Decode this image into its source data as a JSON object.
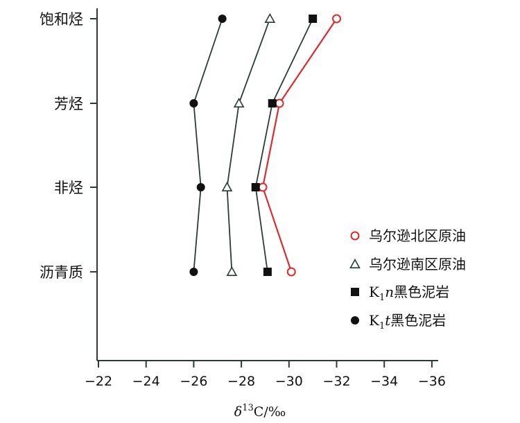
{
  "chart_data": {
    "type": "line",
    "orientation": "vertical-categories",
    "categories": [
      "饱和烃",
      "芳烃",
      "非烃",
      "沥青质"
    ],
    "x_axis": {
      "label": "δ13C/‰",
      "label_parts": {
        "delta": "δ",
        "sup": "13",
        "rest": "C/‰"
      },
      "ticks": [
        -22,
        -24,
        -26,
        -28,
        -30,
        -32,
        -34,
        -36
      ],
      "tick_labels": [
        "−22",
        "−24",
        "−26",
        "−28",
        "−30",
        "−32",
        "−34",
        "−36"
      ],
      "range": [
        -22,
        -36
      ],
      "reversed": true
    },
    "grid": false,
    "legend_position": "right",
    "series": [
      {
        "name": "乌尔逊北区原油",
        "legend": [
          {
            "t": "乌尔逊北区原油"
          }
        ],
        "marker": "open-circle",
        "color": "#e0282d",
        "line_color": "#e0282d",
        "values": [
          -32.0,
          -29.6,
          -28.9,
          -30.1
        ]
      },
      {
        "name": "乌尔逊南区原油",
        "legend": [
          {
            "t": "乌尔逊南区原油"
          }
        ],
        "marker": "open-triangle",
        "color": "#2b3a33",
        "line_color": "#2b3a33",
        "values": [
          -29.2,
          -27.9,
          -27.4,
          -27.6
        ]
      },
      {
        "name": "K1n黑色泥岩",
        "legend": [
          {
            "t": "K"
          },
          {
            "t": "1",
            "sub": true
          },
          {
            "t": "n",
            "italic": true
          },
          {
            "t": "黑色泥岩"
          }
        ],
        "marker": "filled-square",
        "color": "#111111",
        "line_color": "#2b3a33",
        "values": [
          -31.0,
          -29.3,
          -28.6,
          -29.1
        ]
      },
      {
        "name": "K1t黑色泥岩",
        "legend": [
          {
            "t": "K"
          },
          {
            "t": "1",
            "sub": true
          },
          {
            "t": "t",
            "italic": true
          },
          {
            "t": "黑色泥岩"
          }
        ],
        "marker": "filled-circle",
        "color": "#111111",
        "line_color": "#2b3a33",
        "values": [
          -27.2,
          -26.0,
          -26.3,
          -26.0
        ]
      }
    ]
  }
}
